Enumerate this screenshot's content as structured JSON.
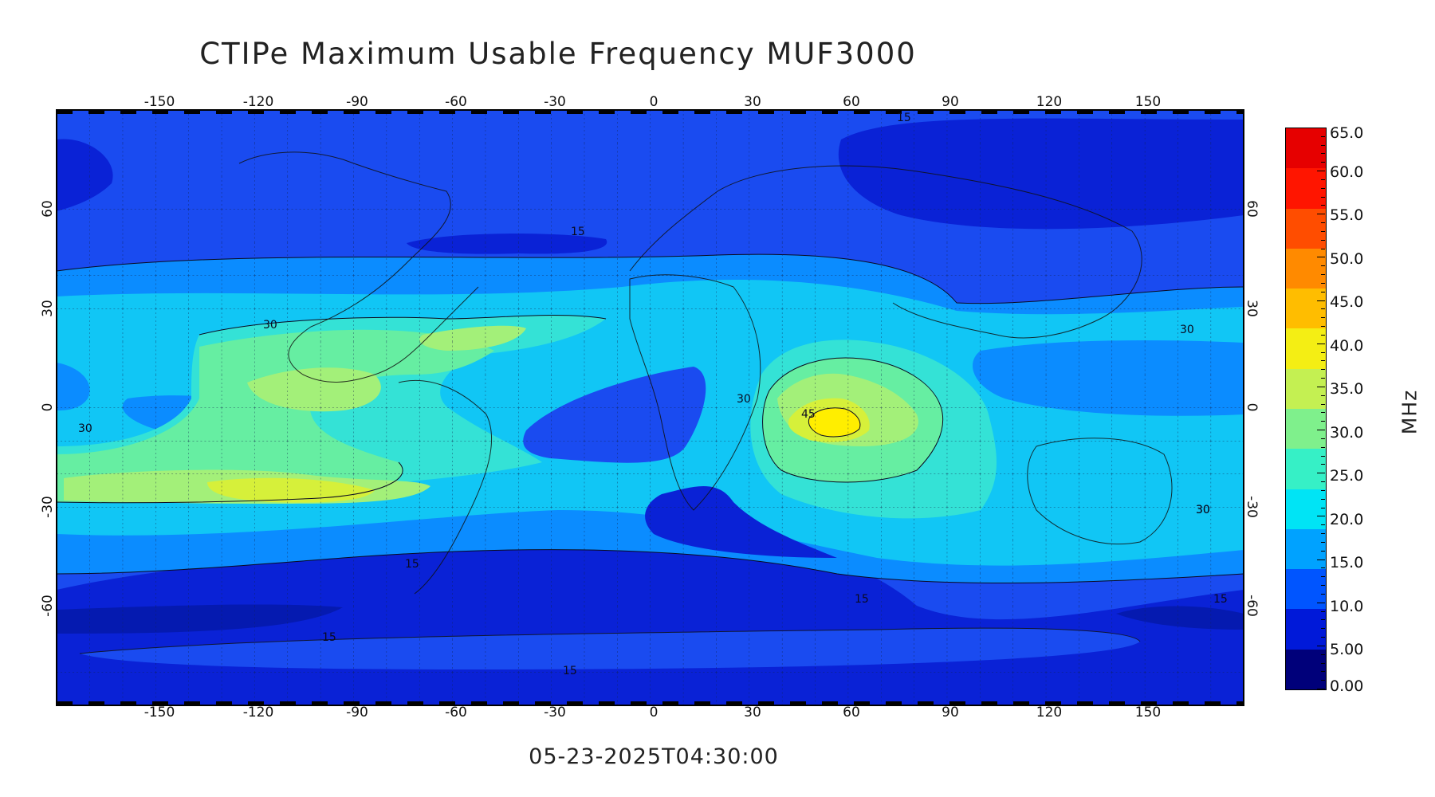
{
  "title": "CTIPe Maximum Usable Frequency MUF3000",
  "timestamp": "05-23-2025T04:30:00",
  "map": {
    "lon_ticks": [
      "-150",
      "-120",
      "-90",
      "-60",
      "-30",
      "0",
      "30",
      "60",
      "90",
      "120",
      "150"
    ],
    "lat_ticks": [
      "60",
      "30",
      "0",
      "-30",
      "-60"
    ],
    "contour_labels": [
      "15",
      "15",
      "30",
      "30",
      "30",
      "30",
      "30",
      "45",
      "15",
      "15",
      "15",
      "30",
      "15",
      "15"
    ]
  },
  "colorbar": {
    "unit": "MHz",
    "labels": [
      "65.0",
      "60.0",
      "55.0",
      "50.0",
      "45.0",
      "40.0",
      "35.0",
      "30.0",
      "25.0",
      "20.0",
      "15.0",
      "10.0",
      "5.00",
      "0.00"
    ],
    "colors": [
      "#00007a",
      "#0019d9",
      "#0055ff",
      "#00a2ff",
      "#00e4f5",
      "#36f0c6",
      "#7ff08c",
      "#c4f052",
      "#f4ee14",
      "#ffbd00",
      "#ff8a00",
      "#ff4d00",
      "#ff1500",
      "#e60000"
    ]
  }
}
